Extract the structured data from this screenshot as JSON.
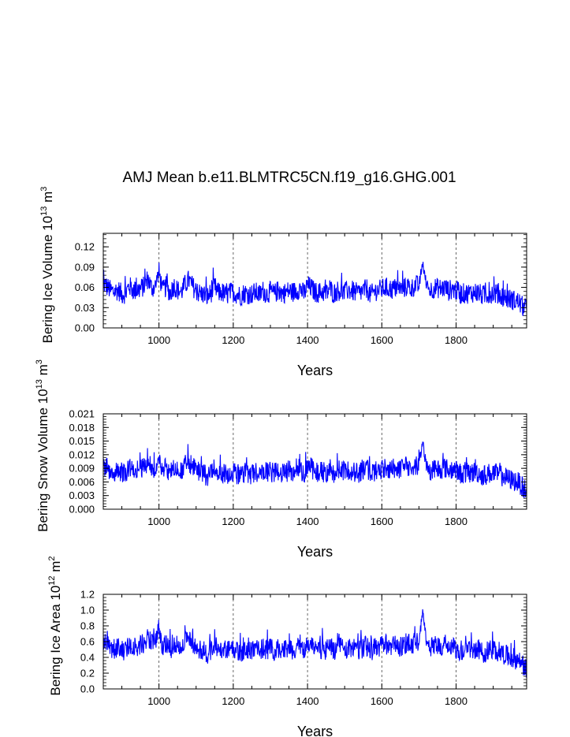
{
  "figure": {
    "title": "AMJ Mean b.e11.BLMTRC5CN.f19_g16.GHG.001"
  },
  "chart_data": [
    {
      "type": "line",
      "ylabel": "Bering Ice Volume",
      "yunit_base": "10",
      "yunit_exp": "13",
      "yunit_unit": "m",
      "yunit_unit_exp": "3",
      "xlabel": "Years",
      "xlim": [
        850,
        1990
      ],
      "ylim": [
        0,
        0.14
      ],
      "xticks": [
        1000,
        1200,
        1400,
        1600,
        1800
      ],
      "xtick_labels": [
        "1000",
        "1200",
        "1400",
        "1600",
        "1800"
      ],
      "yticks": [
        0,
        0.03,
        0.06,
        0.09,
        0.12
      ],
      "ytick_labels": [
        "0.00",
        "0.03",
        "0.06",
        "0.09",
        "0.12"
      ],
      "grid": "dashed vertical at x ticks",
      "color": "#0000ff",
      "series": {
        "x_start": 850,
        "x_step": 10,
        "values": [
          0.066,
          0.061,
          0.055,
          0.054,
          0.056,
          0.05,
          0.051,
          0.062,
          0.056,
          0.055,
          0.058,
          0.062,
          0.073,
          0.059,
          0.061,
          0.082,
          0.055,
          0.062,
          0.051,
          0.063,
          0.056,
          0.053,
          0.064,
          0.071,
          0.062,
          0.055,
          0.051,
          0.05,
          0.046,
          0.052,
          0.061,
          0.052,
          0.053,
          0.047,
          0.052,
          0.053,
          0.05,
          0.048,
          0.052,
          0.05,
          0.05,
          0.053,
          0.049,
          0.055,
          0.05,
          0.054,
          0.05,
          0.055,
          0.052,
          0.052,
          0.055,
          0.053,
          0.055,
          0.059,
          0.05,
          0.063,
          0.059,
          0.053,
          0.052,
          0.054,
          0.05,
          0.059,
          0.051,
          0.055,
          0.055,
          0.052,
          0.056,
          0.055,
          0.052,
          0.052,
          0.055,
          0.058,
          0.048,
          0.054,
          0.056,
          0.057,
          0.06,
          0.058,
          0.057,
          0.06,
          0.056,
          0.059,
          0.062,
          0.058,
          0.064,
          0.061,
          0.097,
          0.063,
          0.055,
          0.059,
          0.059,
          0.058,
          0.06,
          0.055,
          0.058,
          0.055,
          0.051,
          0.051,
          0.051,
          0.052,
          0.053,
          0.052,
          0.048,
          0.049,
          0.051,
          0.052,
          0.05,
          0.048,
          0.046,
          0.043,
          0.042,
          0.04,
          0.038,
          0.031,
          0.028
        ]
      }
    },
    {
      "type": "line",
      "ylabel": "Bering Snow Volume",
      "yunit_base": "10",
      "yunit_exp": "13",
      "yunit_unit": "m",
      "yunit_unit_exp": "3",
      "xlabel": "Years",
      "xlim": [
        850,
        1990
      ],
      "ylim": [
        0,
        0.021
      ],
      "xticks": [
        1000,
        1200,
        1400,
        1600,
        1800
      ],
      "xtick_labels": [
        "1000",
        "1200",
        "1400",
        "1600",
        "1800"
      ],
      "yticks": [
        0,
        0.003,
        0.006,
        0.009,
        0.012,
        0.015,
        0.018,
        0.021
      ],
      "ytick_labels": [
        "0.000",
        "0.003",
        "0.006",
        "0.009",
        "0.012",
        "0.015",
        "0.018",
        "0.021"
      ],
      "grid": "dashed vertical at x ticks",
      "color": "#0000ff",
      "series": {
        "x_start": 850,
        "x_step": 10,
        "values": [
          0.0095,
          0.009,
          0.0085,
          0.0082,
          0.0088,
          0.008,
          0.0081,
          0.0093,
          0.0085,
          0.0084,
          0.0089,
          0.0092,
          0.0105,
          0.009,
          0.0093,
          0.0115,
          0.0085,
          0.0094,
          0.008,
          0.0096,
          0.0086,
          0.0082,
          0.0097,
          0.0104,
          0.0093,
          0.0084,
          0.008,
          0.0078,
          0.0073,
          0.0082,
          0.0093,
          0.0081,
          0.0082,
          0.0074,
          0.0081,
          0.0083,
          0.0078,
          0.0075,
          0.0081,
          0.0078,
          0.0078,
          0.0082,
          0.0076,
          0.0086,
          0.0079,
          0.0084,
          0.0078,
          0.0086,
          0.0081,
          0.008,
          0.0085,
          0.0082,
          0.0086,
          0.0091,
          0.0078,
          0.0097,
          0.0091,
          0.0083,
          0.0081,
          0.0084,
          0.0078,
          0.0091,
          0.008,
          0.0085,
          0.0085,
          0.0081,
          0.0087,
          0.0085,
          0.0081,
          0.0081,
          0.0085,
          0.009,
          0.0076,
          0.0084,
          0.0087,
          0.0088,
          0.0092,
          0.0089,
          0.0088,
          0.0093,
          0.0087,
          0.0091,
          0.0095,
          0.0089,
          0.0098,
          0.0094,
          0.015,
          0.0096,
          0.0085,
          0.0091,
          0.009,
          0.0089,
          0.0092,
          0.0085,
          0.0089,
          0.0085,
          0.0079,
          0.0079,
          0.0079,
          0.008,
          0.0082,
          0.008,
          0.0074,
          0.0076,
          0.0079,
          0.008,
          0.0077,
          0.0074,
          0.0071,
          0.0067,
          0.0064,
          0.0062,
          0.0058,
          0.0047,
          0.004
        ]
      }
    },
    {
      "type": "line",
      "ylabel": "Bering Ice Area",
      "yunit_base": "10",
      "yunit_exp": "12",
      "yunit_unit": "m",
      "yunit_unit_exp": "2",
      "xlabel": "Years",
      "xlim": [
        850,
        1990
      ],
      "ylim": [
        0,
        1.2
      ],
      "xticks": [
        1000,
        1200,
        1400,
        1600,
        1800
      ],
      "xtick_labels": [
        "1000",
        "1200",
        "1400",
        "1600",
        "1800"
      ],
      "yticks": [
        0,
        0.2,
        0.4,
        0.6,
        0.8,
        1.0,
        1.2
      ],
      "ytick_labels": [
        "0.0",
        "0.2",
        "0.4",
        "0.6",
        "0.8",
        "1.0",
        "1.2"
      ],
      "grid": "dashed vertical at x ticks",
      "color": "#0000ff",
      "series": {
        "x_start": 850,
        "x_step": 10,
        "values": [
          0.62,
          0.58,
          0.53,
          0.51,
          0.54,
          0.48,
          0.49,
          0.58,
          0.53,
          0.52,
          0.55,
          0.58,
          0.68,
          0.56,
          0.58,
          0.78,
          0.53,
          0.59,
          0.49,
          0.6,
          0.53,
          0.51,
          0.61,
          0.66,
          0.59,
          0.52,
          0.49,
          0.48,
          0.44,
          0.5,
          0.58,
          0.49,
          0.5,
          0.45,
          0.49,
          0.5,
          0.48,
          0.46,
          0.49,
          0.48,
          0.48,
          0.5,
          0.47,
          0.52,
          0.48,
          0.51,
          0.48,
          0.52,
          0.49,
          0.49,
          0.52,
          0.5,
          0.52,
          0.56,
          0.48,
          0.59,
          0.56,
          0.5,
          0.49,
          0.51,
          0.48,
          0.56,
          0.49,
          0.52,
          0.52,
          0.49,
          0.53,
          0.52,
          0.49,
          0.49,
          0.52,
          0.55,
          0.46,
          0.51,
          0.53,
          0.54,
          0.57,
          0.55,
          0.54,
          0.57,
          0.53,
          0.56,
          0.59,
          0.55,
          0.61,
          0.58,
          0.98,
          0.6,
          0.52,
          0.56,
          0.56,
          0.55,
          0.57,
          0.52,
          0.55,
          0.52,
          0.49,
          0.49,
          0.49,
          0.5,
          0.51,
          0.5,
          0.46,
          0.47,
          0.49,
          0.5,
          0.48,
          0.46,
          0.44,
          0.41,
          0.4,
          0.38,
          0.36,
          0.29,
          0.24
        ]
      }
    }
  ]
}
